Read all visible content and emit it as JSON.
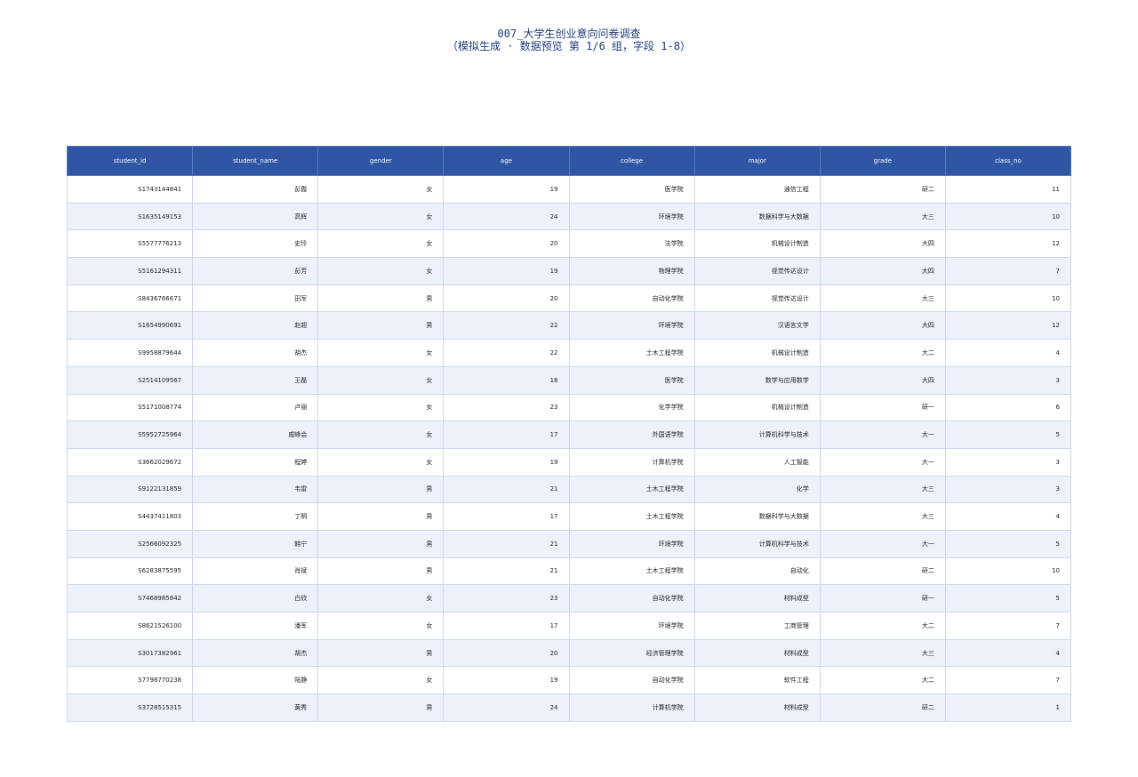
{
  "header": {
    "title": "007_大学生创业意向问卷调查",
    "subtitle": "（模拟生成 · 数据预览 第 1/6 组，字段 1-8）"
  },
  "table": {
    "columns": [
      "student_id",
      "student_name",
      "gender",
      "age",
      "college",
      "major",
      "grade",
      "class_no"
    ],
    "rows": [
      [
        "S1743144841",
        "彭霞",
        "女",
        19,
        "医学院",
        "通信工程",
        "研二",
        11
      ],
      [
        "S1635149153",
        "高辉",
        "女",
        24,
        "环境学院",
        "数据科学与大数据",
        "大三",
        10
      ],
      [
        "S5577776213",
        "史玲",
        "女",
        20,
        "法学院",
        "机械设计制造",
        "大四",
        12
      ],
      [
        "S5161294311",
        "彭芳",
        "女",
        19,
        "物理学院",
        "视觉传达设计",
        "大四",
        7
      ],
      [
        "S8436766671",
        "田军",
        "男",
        20,
        "自动化学院",
        "视觉传达设计",
        "大三",
        10
      ],
      [
        "S1654990691",
        "赵超",
        "男",
        22,
        "环境学院",
        "汉语言文学",
        "大四",
        12
      ],
      [
        "S9958879644",
        "胡杰",
        "女",
        22,
        "土木工程学院",
        "机械设计制造",
        "大二",
        4
      ],
      [
        "S2514109567",
        "王磊",
        "女",
        18,
        "医学院",
        "数学与应用数学",
        "大四",
        3
      ],
      [
        "S5171008774",
        "卢丽",
        "女",
        23,
        "化学学院",
        "机械设计制造",
        "研一",
        6
      ],
      [
        "S5952725964",
        "戚峰会",
        "女",
        17,
        "外国语学院",
        "计算机科学与技术",
        "大一",
        5
      ],
      [
        "S3662029672",
        "程婷",
        "女",
        19,
        "计算机学院",
        "人工智能",
        "大一",
        3
      ],
      [
        "S9122131859",
        "韦雷",
        "男",
        21,
        "土木工程学院",
        "化学",
        "大三",
        3
      ],
      [
        "S4437411803",
        "丁明",
        "男",
        17,
        "土木工程学院",
        "数据科学与大数据",
        "大三",
        4
      ],
      [
        "S2566092325",
        "韩宁",
        "男",
        21,
        "环境学院",
        "计算机科学与技术",
        "大一",
        5
      ],
      [
        "S6283875595",
        "肖斌",
        "男",
        21,
        "土木工程学院",
        "自动化",
        "研二",
        10
      ],
      [
        "S7468985842",
        "白欣",
        "女",
        23,
        "自动化学院",
        "材料成型",
        "研一",
        5
      ],
      [
        "S8621526100",
        "潘军",
        "女",
        17,
        "环境学院",
        "工商管理",
        "大二",
        7
      ],
      [
        "S3017382961",
        "胡杰",
        "男",
        20,
        "经济管理学院",
        "材料成型",
        "大三",
        4
      ],
      [
        "S7798770238",
        "陆静",
        "女",
        19,
        "自动化学院",
        "软件工程",
        "大二",
        7
      ],
      [
        "S3728515315",
        "黄秀",
        "男",
        24,
        "计算机学院",
        "材料成型",
        "研二",
        1
      ]
    ]
  }
}
